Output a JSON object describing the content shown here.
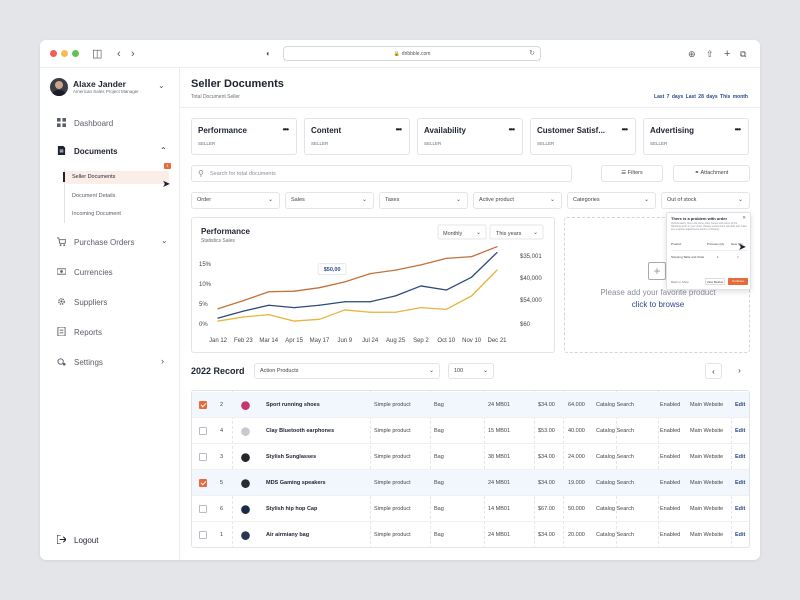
{
  "browser": {
    "url": "dribbble.com"
  },
  "profile": {
    "name": "Alaxe Jander",
    "role": "American Sales Project Manager"
  },
  "nav": {
    "dashboard": "Dashboard",
    "documents": "Documents",
    "documents_badge": "1",
    "sub": [
      "Seller Documents",
      "Document Details",
      "Incoming Document"
    ],
    "purchase_orders": "Purchase Orders",
    "currencies": "Currencies",
    "suppliers": "Suppliers",
    "reports": "Reports",
    "settings": "Settings",
    "logout": "Logout"
  },
  "header": {
    "title": "Seller Documents",
    "subtitle": "Total Document Seller",
    "range_links": "Last 7 days  Last 28 days  This month"
  },
  "cards": [
    {
      "title": "Performance",
      "tag": "SELLER"
    },
    {
      "title": "Content",
      "tag": "SELLER"
    },
    {
      "title": "Availability",
      "tag": "SELLER"
    },
    {
      "title": "Customer Satisf...",
      "tag": "SELLER"
    },
    {
      "title": "Advertising",
      "tag": "SELLER"
    }
  ],
  "search": {
    "placeholder": "Search for total documents"
  },
  "buttons": {
    "filters": "Filters",
    "attachment": "Attachment"
  },
  "filters": [
    "Order",
    "Sales",
    "Taxes",
    "Active product",
    "Categories",
    "Out of stock"
  ],
  "chart_data": {
    "type": "line",
    "title": "Performance",
    "subtitle": "Statistics Sales",
    "period_select": "Monthly",
    "year_select": "This years",
    "categories": [
      "Jan 12",
      "Feb 23",
      "Mar 14",
      "Apr 15",
      "May 17",
      "Jun 9",
      "Jul 24",
      "Aug 25",
      "Sep 2",
      "Oct 10",
      "Nov 10",
      "Dec 21"
    ],
    "left_ticks": [
      "15%",
      "10%",
      "5%",
      "0%"
    ],
    "right_ticks": [
      "$35,001",
      "$40,000",
      "$54,000",
      "$60"
    ],
    "tooltip": "$50,00",
    "series": [
      {
        "color": "#c4703a",
        "values": [
          26,
          40,
          55,
          56,
          62,
          72,
          86,
          92,
          101,
          112,
          115,
          132
        ]
      },
      {
        "color": "#2d4a7a",
        "values": [
          10,
          22,
          32,
          28,
          32,
          38,
          38,
          48,
          65,
          58,
          80,
          122
        ]
      },
      {
        "color": "#e8b43a",
        "values": [
          5,
          12,
          16,
          5,
          8,
          24,
          20,
          20,
          28,
          25,
          48,
          92
        ]
      }
    ]
  },
  "dropzone": {
    "text": "Please add your favorite product",
    "link": "click to browse"
  },
  "popup": {
    "title": "There is a problem with order",
    "desc": "Unfortunately, there are some order issues with some of the following items in your order. Please review them carefully and make any required adjustments before continuing.",
    "col1": "Product",
    "col2": "Previous Qty",
    "col3": "New Qty",
    "item": "Showing Table and Chair",
    "qty_old": "1",
    "qty_new": "0",
    "back": "Back to Shop",
    "view": "View Basket",
    "continue": "Continue"
  },
  "records": {
    "title": "2022 Record",
    "action_select": "Action Products",
    "page_size": "100",
    "rows": [
      {
        "checked": true,
        "num": "2",
        "name": "Sport running shoes",
        "type": "Simple product",
        "cat": "Bag",
        "sku": "24 MB01",
        "price": "$34.00",
        "qty": "64.000",
        "vis": "Catalog Search",
        "status": "Enabled",
        "site": "Main Website",
        "edit": "Edit",
        "thumb": "#c8356a"
      },
      {
        "checked": false,
        "num": "4",
        "name": "Clay Bluetooth earphones",
        "type": "Simple product",
        "cat": "Bag",
        "sku": "15 MB01",
        "price": "$53.00",
        "qty": "40.000",
        "vis": "Catalog Search",
        "status": "Enabled",
        "site": "Main Website",
        "edit": "Edit",
        "thumb": "#c9cacf"
      },
      {
        "checked": false,
        "num": "3",
        "name": "Stylish Sunglasses",
        "type": "Simple product",
        "cat": "Bag",
        "sku": "38 MB01",
        "price": "$34.00",
        "qty": "24.000",
        "vis": "Catalog Search",
        "status": "Enabled",
        "site": "Main Website",
        "edit": "Edit",
        "thumb": "#24262c"
      },
      {
        "checked": true,
        "num": "5",
        "name": "MDS Gaming speakers",
        "type": "Simple product",
        "cat": "Bag",
        "sku": "24 MB01",
        "price": "$34.00",
        "qty": "19.000",
        "vis": "Catalog Search",
        "status": "Enabled",
        "site": "Main Website",
        "edit": "Edit",
        "thumb": "#2a2c32"
      },
      {
        "checked": false,
        "num": "6",
        "name": "Stylish hip hop Cap",
        "type": "Simple product",
        "cat": "Bag",
        "sku": "14 MB01",
        "price": "$67.00",
        "qty": "50.000",
        "vis": "Catalog Search",
        "status": "Enabled",
        "site": "Main Website",
        "edit": "Edit",
        "thumb": "#1d2a45"
      },
      {
        "checked": false,
        "num": "1",
        "name": "Air airmiany bag",
        "type": "Simple product",
        "cat": "Bag",
        "sku": "24 MB01",
        "price": "$34.00",
        "qty": "20.000",
        "vis": "Catalog Search",
        "status": "Enabled",
        "site": "Main Website",
        "edit": "Edit",
        "thumb": "#2c3550"
      }
    ]
  }
}
